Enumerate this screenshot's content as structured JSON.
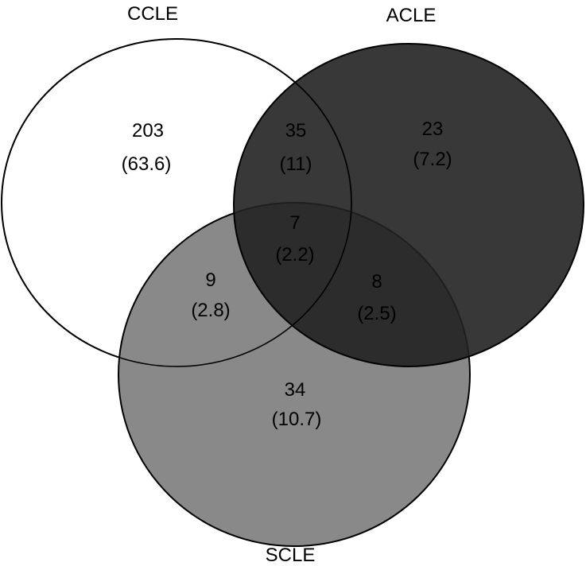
{
  "sets": {
    "ccle": {
      "label": "CCLE",
      "fill": "#ffffff",
      "stroke": "#000000"
    },
    "acle": {
      "label": "ACLE",
      "fill": "#222222",
      "stroke": "#000000"
    },
    "scle": {
      "label": "SCLE",
      "fill": "#808080",
      "stroke": "#000000"
    }
  },
  "regions": {
    "ccle_only": {
      "count": "203",
      "percent": "(63.6)"
    },
    "ccle_acle": {
      "count": "35",
      "percent": "(11)"
    },
    "acle_only": {
      "count": "23",
      "percent": "(7.2)"
    },
    "all_three": {
      "count": "7",
      "percent": "(2.2)"
    },
    "ccle_scle": {
      "count": "9",
      "percent": "(2.8)"
    },
    "acle_scle": {
      "count": "8",
      "percent": "(2.5)"
    },
    "scle_only": {
      "count": "34",
      "percent": "(10.7)"
    }
  }
}
